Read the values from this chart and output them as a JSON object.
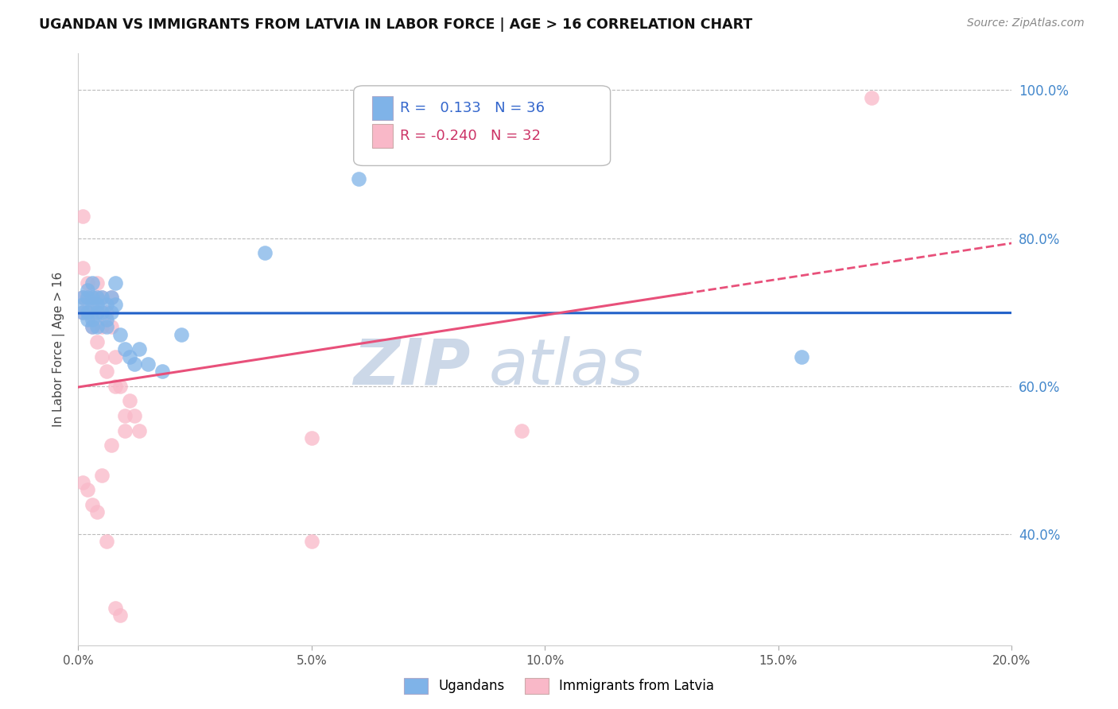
{
  "title": "UGANDAN VS IMMIGRANTS FROM LATVIA IN LABOR FORCE | AGE > 16 CORRELATION CHART",
  "source": "Source: ZipAtlas.com",
  "ylabel": "In Labor Force | Age > 16",
  "xlim": [
    0.0,
    0.2
  ],
  "ylim": [
    0.25,
    1.05
  ],
  "yticks": [
    0.4,
    0.6,
    0.8,
    1.0
  ],
  "xticks": [
    0.0,
    0.05,
    0.1,
    0.15,
    0.2
  ],
  "xtick_labels": [
    "0.0%",
    "5.0%",
    "10.0%",
    "15.0%",
    "20.0%"
  ],
  "ytick_labels": [
    "40.0%",
    "60.0%",
    "80.0%",
    "100.0%"
  ],
  "blue_color": "#7fb3e8",
  "pink_color": "#f9b8c8",
  "blue_line_color": "#2060c8",
  "pink_line_color": "#e8507a",
  "r_blue": 0.133,
  "n_blue": 36,
  "r_pink": -0.24,
  "n_pink": 32,
  "ugandan_x": [
    0.001,
    0.001,
    0.001,
    0.002,
    0.002,
    0.002,
    0.002,
    0.003,
    0.003,
    0.003,
    0.003,
    0.003,
    0.004,
    0.004,
    0.004,
    0.004,
    0.005,
    0.005,
    0.006,
    0.006,
    0.006,
    0.007,
    0.007,
    0.008,
    0.008,
    0.009,
    0.01,
    0.011,
    0.012,
    0.013,
    0.015,
    0.018,
    0.022,
    0.04,
    0.06,
    0.155
  ],
  "ugandan_y": [
    0.71,
    0.72,
    0.7,
    0.69,
    0.73,
    0.7,
    0.72,
    0.69,
    0.72,
    0.71,
    0.74,
    0.68,
    0.7,
    0.72,
    0.68,
    0.71,
    0.7,
    0.72,
    0.69,
    0.71,
    0.68,
    0.72,
    0.7,
    0.74,
    0.71,
    0.67,
    0.65,
    0.64,
    0.63,
    0.65,
    0.63,
    0.62,
    0.67,
    0.78,
    0.88,
    0.64
  ],
  "latvia_x": [
    0.001,
    0.001,
    0.001,
    0.001,
    0.002,
    0.002,
    0.002,
    0.003,
    0.003,
    0.003,
    0.004,
    0.004,
    0.004,
    0.004,
    0.005,
    0.005,
    0.005,
    0.006,
    0.006,
    0.007,
    0.007,
    0.008,
    0.008,
    0.009,
    0.01,
    0.01,
    0.011,
    0.012,
    0.013,
    0.05,
    0.095,
    0.17
  ],
  "latvia_y": [
    0.83,
    0.72,
    0.76,
    0.7,
    0.74,
    0.72,
    0.7,
    0.72,
    0.7,
    0.68,
    0.74,
    0.72,
    0.7,
    0.66,
    0.72,
    0.68,
    0.64,
    0.7,
    0.62,
    0.72,
    0.68,
    0.64,
    0.6,
    0.6,
    0.56,
    0.54,
    0.58,
    0.56,
    0.54,
    0.53,
    0.54,
    0.99
  ],
  "latvia_low_x": [
    0.001,
    0.002,
    0.003,
    0.004,
    0.005,
    0.006,
    0.007,
    0.008,
    0.009,
    0.05
  ],
  "latvia_low_y": [
    0.47,
    0.46,
    0.44,
    0.43,
    0.48,
    0.39,
    0.52,
    0.3,
    0.29,
    0.39
  ],
  "watermark_line1": "ZIP",
  "watermark_line2": "atlas",
  "watermark_color": "#ccd8e8",
  "background_color": "#ffffff",
  "grid_color": "#bbbbbb"
}
